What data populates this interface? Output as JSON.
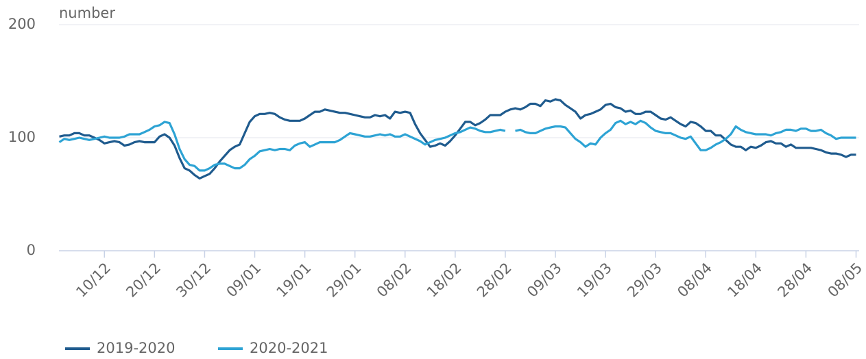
{
  "chart_data": {
    "type": "line",
    "y_axis_label": "number",
    "categories": [
      null,
      null,
      null,
      null,
      null,
      null,
      null,
      null,
      null,
      "10/12",
      null,
      null,
      null,
      null,
      null,
      null,
      null,
      null,
      null,
      "20/12",
      null,
      null,
      null,
      null,
      null,
      null,
      null,
      null,
      null,
      "30/12",
      null,
      null,
      null,
      null,
      null,
      null,
      null,
      null,
      null,
      "09/01",
      null,
      null,
      null,
      null,
      null,
      null,
      null,
      null,
      null,
      "19/01",
      null,
      null,
      null,
      null,
      null,
      null,
      null,
      null,
      null,
      "29/01",
      null,
      null,
      null,
      null,
      null,
      null,
      null,
      null,
      null,
      "08/02",
      null,
      null,
      null,
      null,
      null,
      null,
      null,
      null,
      null,
      "18/02",
      null,
      null,
      null,
      null,
      null,
      null,
      null,
      null,
      null,
      "28/02",
      null,
      null,
      null,
      null,
      null,
      null,
      null,
      null,
      null,
      "09/03",
      null,
      null,
      null,
      null,
      null,
      null,
      null,
      null,
      null,
      "19/03",
      null,
      null,
      null,
      null,
      null,
      null,
      null,
      null,
      null,
      "29/03",
      null,
      null,
      null,
      null,
      null,
      null,
      null,
      null,
      null,
      "08/04",
      null,
      null,
      null,
      null,
      null,
      null,
      null,
      null,
      null,
      "18/04",
      null,
      null,
      null,
      null,
      null,
      null,
      null,
      null,
      null,
      "28/04",
      null,
      null,
      null,
      null,
      null,
      null,
      null,
      null,
      null,
      "08/05"
    ],
    "series": [
      {
        "name": "2019-2020",
        "color": "#1f5b8e",
        "values": [
          101,
          102,
          102,
          104,
          104,
          102,
          102,
          100,
          98,
          95,
          96,
          97,
          96,
          93,
          94,
          96,
          97,
          96,
          96,
          96,
          101,
          103,
          100,
          93,
          82,
          73,
          71,
          67,
          64,
          66,
          68,
          73,
          79,
          84,
          89,
          92,
          94,
          104,
          114,
          119,
          121,
          121,
          122,
          121,
          118,
          116,
          115,
          115,
          115,
          117,
          120,
          123,
          123,
          125,
          124,
          123,
          122,
          122,
          121,
          120,
          119,
          118,
          118,
          120,
          119,
          120,
          117,
          123,
          122,
          123,
          122,
          112,
          104,
          98,
          92,
          93,
          95,
          93,
          97,
          102,
          108,
          114,
          114,
          111,
          113,
          116,
          120,
          120,
          120,
          123,
          125,
          126,
          125,
          127,
          130,
          130,
          128,
          133,
          132,
          134,
          133,
          129,
          126,
          123,
          117,
          120,
          121,
          123,
          125,
          129,
          130,
          127,
          126,
          123,
          124,
          121,
          121,
          123,
          123,
          120,
          117,
          116,
          118,
          115,
          112,
          110,
          114,
          113,
          110,
          106,
          106,
          102,
          102,
          98,
          94,
          92,
          92,
          89,
          92,
          91,
          93,
          96,
          97,
          95,
          95,
          92,
          94,
          91,
          91,
          91,
          91,
          90,
          89,
          87,
          86,
          86,
          85,
          83,
          85,
          85
        ]
      },
      {
        "name": "2020-2021",
        "color": "#2da3d4",
        "values": [
          96,
          99,
          98,
          99,
          100,
          99,
          98,
          99,
          100,
          101,
          100,
          100,
          100,
          101,
          103,
          103,
          103,
          105,
          107,
          110,
          111,
          114,
          113,
          103,
          90,
          81,
          76,
          75,
          71,
          71,
          73,
          76,
          77,
          77,
          75,
          73,
          73,
          76,
          81,
          84,
          88,
          89,
          90,
          89,
          90,
          90,
          89,
          93,
          95,
          96,
          92,
          94,
          96,
          96,
          96,
          96,
          98,
          101,
          104,
          103,
          102,
          101,
          101,
          102,
          103,
          102,
          103,
          101,
          101,
          103,
          101,
          99,
          97,
          94,
          96,
          98,
          99,
          100,
          102,
          104,
          105,
          107,
          109,
          108,
          106,
          105,
          105,
          106,
          107,
          106,
          null,
          106,
          107,
          105,
          104,
          104,
          106,
          108,
          109,
          110,
          110,
          109,
          104,
          99,
          96,
          92,
          95,
          94,
          100,
          104,
          107,
          113,
          115,
          112,
          114,
          112,
          115,
          113,
          109,
          106,
          105,
          104,
          104,
          102,
          100,
          99,
          101,
          95,
          89,
          89,
          91,
          94,
          96,
          99,
          103,
          110,
          107,
          105,
          104,
          103,
          103,
          103,
          102,
          104,
          105,
          107,
          107,
          106,
          108,
          108,
          106,
          106,
          107,
          104,
          102,
          99,
          100,
          100,
          100,
          100
        ]
      }
    ],
    "ylim": [
      0,
      200
    ],
    "yticks": [
      0,
      100,
      200
    ],
    "grid": true
  }
}
